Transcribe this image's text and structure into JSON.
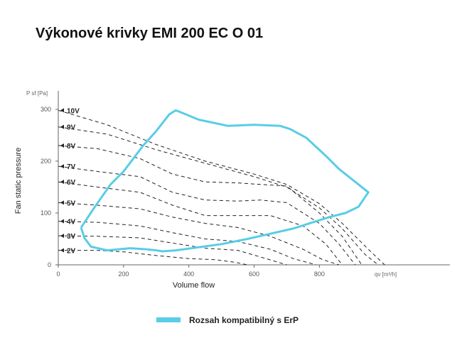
{
  "title": "Výkonové krivky EMI 200 EC O 01",
  "colors": {
    "envelope": "#59cde6",
    "curves": "#222222",
    "axis": "#666666"
  },
  "chart_data": {
    "type": "line",
    "xlabel": "Volume flow",
    "ylabel": "Fan static pressure",
    "x_unit": "qv [m³/h]",
    "y_unit": "P sf [Pa]",
    "xlim": [
      0,
      1200
    ],
    "ylim": [
      0,
      330
    ],
    "x_ticks": [
      0,
      200,
      400,
      600,
      800
    ],
    "y_ticks": [
      0,
      100,
      200,
      300
    ],
    "grid": false,
    "legend": {
      "position": "bottom-center",
      "entries": [
        "Rozsah kompatibilný s ErP"
      ]
    },
    "series": [
      {
        "name": "10V",
        "style": "dashed",
        "x": [
          0,
          150,
          300,
          450,
          600,
          700,
          800,
          870,
          950,
          1000
        ],
        "y": [
          298,
          270,
          232,
          200,
          175,
          155,
          118,
          80,
          30,
          0
        ]
      },
      {
        "name": "9V",
        "style": "dashed",
        "x": [
          0,
          150,
          300,
          450,
          600,
          700,
          800,
          870,
          940,
          980
        ],
        "y": [
          266,
          252,
          222,
          196,
          170,
          150,
          110,
          70,
          20,
          0
        ]
      },
      {
        "name": "8V",
        "style": "dashed",
        "x": [
          0,
          120,
          250,
          350,
          450,
          550,
          620,
          700,
          800,
          870,
          930
        ],
        "y": [
          230,
          224,
          205,
          175,
          160,
          158,
          155,
          152,
          100,
          55,
          0
        ]
      },
      {
        "name": "7V",
        "style": "dashed",
        "x": [
          0,
          120,
          250,
          350,
          450,
          550,
          620,
          700,
          800,
          860,
          910
        ],
        "y": [
          190,
          180,
          170,
          140,
          125,
          123,
          125,
          120,
          80,
          40,
          0
        ]
      },
      {
        "name": "6V",
        "style": "dashed",
        "x": [
          0,
          120,
          250,
          350,
          450,
          550,
          650,
          750,
          820,
          870
        ],
        "y": [
          160,
          150,
          140,
          115,
          95,
          95,
          95,
          75,
          40,
          0
        ]
      },
      {
        "name": "5V",
        "style": "dashed",
        "x": [
          0,
          120,
          250,
          350,
          450,
          550,
          650,
          750,
          810,
          860
        ],
        "y": [
          120,
          115,
          108,
          92,
          80,
          72,
          55,
          30,
          10,
          0
        ]
      },
      {
        "name": "4V",
        "style": "dashed",
        "x": [
          0,
          120,
          250,
          350,
          450,
          550,
          650,
          720,
          790
        ],
        "y": [
          84,
          82,
          75,
          62,
          50,
          45,
          30,
          12,
          0
        ]
      },
      {
        "name": "3V",
        "style": "dashed",
        "x": [
          0,
          120,
          250,
          350,
          450,
          550,
          620,
          700
        ],
        "y": [
          56,
          55,
          52,
          42,
          32,
          28,
          15,
          0
        ]
      },
      {
        "name": "2V",
        "style": "dashed",
        "x": [
          0,
          120,
          200,
          300,
          400,
          480,
          540,
          580
        ],
        "y": [
          28,
          28,
          25,
          18,
          12,
          10,
          5,
          0
        ]
      },
      {
        "name": "Rozsah kompatibilný s ErP",
        "style": "solid",
        "x": [
          70,
          110,
          160,
          200,
          230,
          260,
          300,
          340,
          360,
          380,
          430,
          520,
          600,
          680,
          710,
          760,
          820,
          860,
          950,
          920,
          880,
          830,
          780,
          720,
          650,
          580,
          500,
          420,
          360,
          320,
          300,
          270,
          220,
          150,
          100,
          80,
          70
        ],
        "y": [
          72,
          110,
          155,
          180,
          205,
          230,
          258,
          290,
          298,
          293,
          280,
          268,
          270,
          268,
          262,
          245,
          210,
          185,
          140,
          112,
          100,
          92,
          82,
          70,
          60,
          50,
          40,
          33,
          28,
          26,
          28,
          30,
          32,
          28,
          35,
          52,
          72
        ]
      }
    ]
  }
}
